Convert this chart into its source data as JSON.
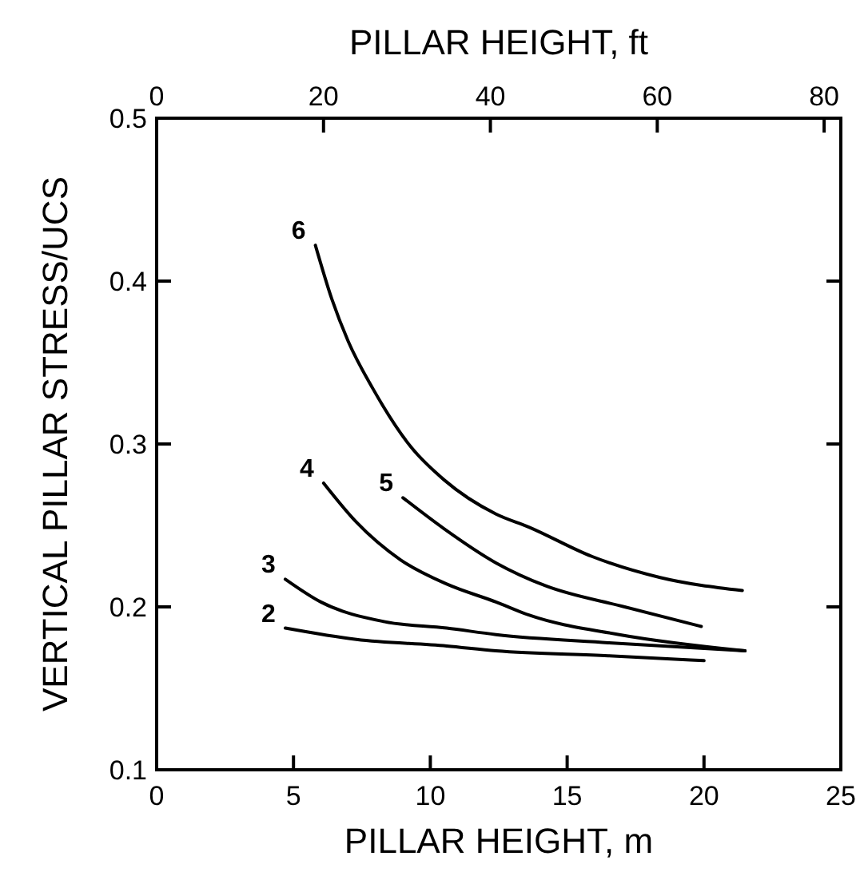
{
  "chart_data": {
    "type": "line",
    "xlabel": "PILLAR HEIGHT, m",
    "ylabel": "VERTICAL PILLAR STRESS/UCS",
    "x2label": "PILLAR HEIGHT, ft",
    "xlim": [
      0,
      25
    ],
    "xticks": [
      0,
      5,
      10,
      15,
      20,
      25
    ],
    "ylim": [
      0.1,
      0.5
    ],
    "yticks": [
      0.1,
      0.2,
      0.3,
      0.4,
      0.5
    ],
    "x2lim": [
      0,
      82
    ],
    "x2ticks": [
      0,
      20,
      40,
      60,
      80
    ],
    "grid": false,
    "marker": "none",
    "line_style": "solid",
    "series": [
      {
        "name": "2",
        "color": "#000000",
        "x": [
          4.7,
          7.3,
          10.6,
          12.4,
          16.5,
          20
        ],
        "values": [
          0.187,
          0.18,
          0.176,
          0.173,
          0.17,
          0.167
        ]
      },
      {
        "name": "3",
        "color": "#000000",
        "x": [
          4.7,
          6,
          8.3,
          10.6,
          12.4,
          16.5,
          21.5
        ],
        "values": [
          0.217,
          0.203,
          0.191,
          0.187,
          0.183,
          0.178,
          0.173
        ]
      },
      {
        "name": "4",
        "color": "#000000",
        "x": [
          6.1,
          7.3,
          8.9,
          10.6,
          12.4,
          13.6,
          16.9,
          21.5
        ],
        "values": [
          0.276,
          0.252,
          0.229,
          0.214,
          0.203,
          0.195,
          0.183,
          0.173
        ]
      },
      {
        "name": "5",
        "color": "#000000",
        "x": [
          9,
          10.5,
          12.4,
          14.2,
          17.1,
          19.9
        ],
        "values": [
          0.267,
          0.248,
          0.227,
          0.213,
          0.2,
          0.188
        ]
      },
      {
        "name": "6",
        "color": "#000000",
        "x": [
          5.8,
          6.4,
          7,
          7.9,
          9.3,
          10.5,
          12.4,
          13.6,
          15.9,
          18.4,
          21.4
        ],
        "values": [
          0.422,
          0.389,
          0.363,
          0.334,
          0.298,
          0.278,
          0.257,
          0.249,
          0.231,
          0.218,
          0.21
        ]
      }
    ]
  }
}
